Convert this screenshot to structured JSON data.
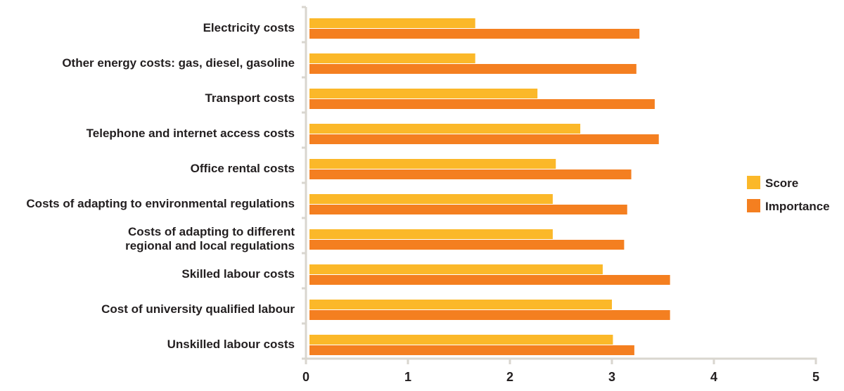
{
  "chart_data": {
    "type": "bar",
    "orientation": "horizontal",
    "title": "",
    "xlabel": "",
    "ylabel": "",
    "categories": [
      [
        "Electricity costs"
      ],
      [
        "Other energy costs: gas, diesel, gasoline"
      ],
      [
        "Transport costs"
      ],
      [
        "Telephone and internet access costs"
      ],
      [
        "Office rental costs"
      ],
      [
        "Costs of adapting to environmental regulations"
      ],
      [
        "Costs of adapting to different",
        "regional and local regulations"
      ],
      [
        "Skilled labour costs"
      ],
      [
        "Cost of university qualified labour"
      ],
      [
        "Unskilled labour costs"
      ]
    ],
    "series": [
      {
        "name": "Score",
        "color": "#fbb829",
        "values": [
          1.66,
          1.66,
          2.27,
          2.69,
          2.45,
          2.42,
          2.42,
          2.91,
          3.0,
          3.01
        ]
      },
      {
        "name": "Importance",
        "color": "#f47f20",
        "values": [
          3.27,
          3.24,
          3.42,
          3.46,
          3.19,
          3.15,
          3.12,
          3.57,
          3.57,
          3.22
        ]
      }
    ],
    "xlim": [
      0,
      5
    ],
    "xticks": [
      "0",
      "1",
      "2",
      "3",
      "4",
      "5"
    ],
    "grid": false,
    "legend_position": "right",
    "axis_color": "#d9d6cf"
  }
}
